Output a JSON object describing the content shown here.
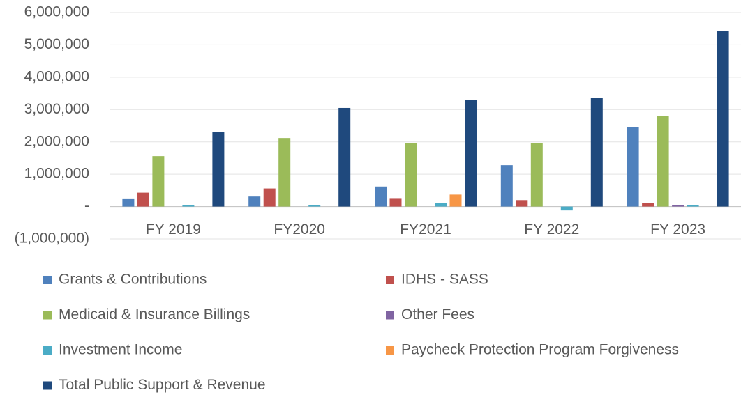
{
  "chart_data": {
    "type": "bar",
    "categories": [
      "FY 2019",
      "FY2020",
      "FY2021",
      "FY 2022",
      "FY 2023"
    ],
    "series": [
      {
        "name": "Grants & Contributions",
        "color": "#4f81bd",
        "values": [
          230000,
          310000,
          620000,
          1280000,
          2460000
        ]
      },
      {
        "name": "IDHS - SASS",
        "color": "#c0504d",
        "values": [
          430000,
          560000,
          240000,
          200000,
          120000
        ]
      },
      {
        "name": "Medicaid & Insurance Billings",
        "color": "#9bbb59",
        "values": [
          1560000,
          2120000,
          1970000,
          1970000,
          2800000
        ]
      },
      {
        "name": "Other Fees",
        "color": "#8064a2",
        "values": [
          0,
          0,
          0,
          0,
          50000
        ]
      },
      {
        "name": "Investment Income",
        "color": "#4bacc6",
        "values": [
          40000,
          40000,
          110000,
          -120000,
          50000
        ]
      },
      {
        "name": "Paycheck Protection Program Forgiveness",
        "color": "#f79646",
        "values": [
          0,
          0,
          370000,
          0,
          0
        ]
      },
      {
        "name": "Total Public Support & Revenue",
        "color": "#1f497d",
        "values": [
          2300000,
          3050000,
          3300000,
          3370000,
          5430000
        ]
      }
    ],
    "ylim": [
      -1000000,
      6000000
    ],
    "yticks": [
      {
        "value": -1000000,
        "label": "(1,000,000)"
      },
      {
        "value": 0,
        "label": "-"
      },
      {
        "value": 1000000,
        "label": "1,000,000"
      },
      {
        "value": 2000000,
        "label": "2,000,000"
      },
      {
        "value": 3000000,
        "label": "3,000,000"
      },
      {
        "value": 4000000,
        "label": "4,000,000"
      },
      {
        "value": 5000000,
        "label": "5,000,000"
      },
      {
        "value": 6000000,
        "label": "6,000,000"
      }
    ],
    "grid": true,
    "legend": "bottom"
  }
}
